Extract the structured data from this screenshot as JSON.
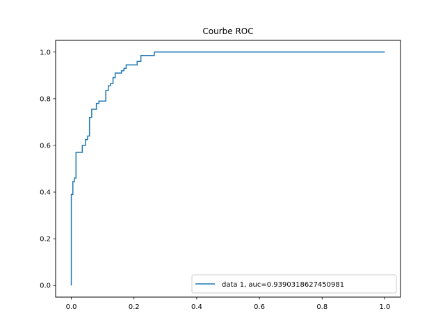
{
  "chart_data": {
    "type": "line",
    "title": "Courbe ROC",
    "xlabel": "",
    "ylabel": "",
    "xlim": [
      -0.05,
      1.05
    ],
    "ylim": [
      -0.05,
      1.05
    ],
    "x_ticks": [
      0.0,
      0.2,
      0.4,
      0.6,
      0.8,
      1.0
    ],
    "x_tick_labels": [
      "0.0",
      "0.2",
      "0.4",
      "0.6",
      "0.8",
      "1.0"
    ],
    "y_ticks": [
      0.0,
      0.2,
      0.4,
      0.6,
      0.8,
      1.0
    ],
    "y_tick_labels": [
      "0.0",
      "0.2",
      "0.4",
      "0.6",
      "0.8",
      "1.0"
    ],
    "grid": false,
    "legend_position": "lower-right",
    "series": [
      {
        "name": "data 1, auc=0.9390318627450981",
        "color": "#1f77b4",
        "x": [
          0.0,
          0.0,
          0.005,
          0.005,
          0.01,
          0.01,
          0.015,
          0.015,
          0.035,
          0.035,
          0.045,
          0.045,
          0.052,
          0.052,
          0.058,
          0.058,
          0.065,
          0.065,
          0.08,
          0.08,
          0.088,
          0.088,
          0.11,
          0.11,
          0.118,
          0.118,
          0.125,
          0.125,
          0.133,
          0.133,
          0.14,
          0.14,
          0.16,
          0.16,
          0.168,
          0.168,
          0.175,
          0.175,
          0.21,
          0.21,
          0.222,
          0.222,
          0.265,
          0.265,
          0.588,
          0.588,
          1.0
        ],
        "y": [
          0.0,
          0.39,
          0.39,
          0.445,
          0.445,
          0.46,
          0.46,
          0.57,
          0.57,
          0.6,
          0.6,
          0.625,
          0.625,
          0.64,
          0.64,
          0.72,
          0.72,
          0.755,
          0.755,
          0.78,
          0.78,
          0.79,
          0.79,
          0.835,
          0.835,
          0.855,
          0.855,
          0.865,
          0.865,
          0.89,
          0.89,
          0.91,
          0.91,
          0.92,
          0.92,
          0.93,
          0.93,
          0.945,
          0.945,
          0.96,
          0.96,
          0.985,
          0.985,
          1.0,
          1.0,
          1.0,
          1.0
        ]
      }
    ]
  }
}
